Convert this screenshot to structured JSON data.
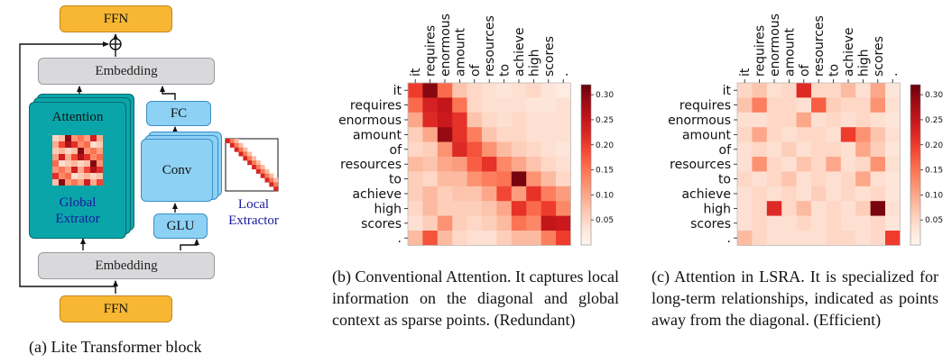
{
  "panel_a": {
    "ffn_top": "FFN",
    "ffn_bottom": "FFN",
    "embedding_top": "Embedding",
    "embedding_bottom": "Embedding",
    "attention": "Attention",
    "global_extractor_line1": "Global",
    "global_extractor_line2": "Extrator",
    "fc": "FC",
    "conv": "Conv",
    "glu": "GLU",
    "local_extractor_line1": "Local",
    "local_extractor_line2": "Extractor",
    "caption": "(a) Lite Transformer block"
  },
  "colors": {
    "ffn": "#f7b733",
    "embedding": "#d9d9dc",
    "conv_branch": "#8dd1f5",
    "attention": "#0aa5a9",
    "extractor_text": "#1a1a9c"
  },
  "panel_b": {
    "caption": "(b) Conventional Attention. It captures local information on the diagonal and global context as sparse points. (Redundant)"
  },
  "panel_c": {
    "caption": "(c) Attention in LSRA. It is specialized for long-term relationships, indicated as points away from the diagonal. (Efficient)"
  },
  "chart_data": [
    {
      "type": "heatmap",
      "tokens": [
        "it",
        "requires",
        "enormous",
        "amount",
        "of",
        "resources",
        "to",
        "achieve",
        "high",
        "scores",
        "."
      ],
      "colorbar_ticks": [
        "0.05",
        "0.10",
        "0.15",
        "0.20",
        "0.25",
        "0.30"
      ],
      "vmin": 0.0,
      "vmax": 0.32,
      "values": [
        [
          0.2,
          0.3,
          0.16,
          0.07,
          0.05,
          0.04,
          0.03,
          0.04,
          0.05,
          0.03,
          0.02
        ],
        [
          0.16,
          0.23,
          0.25,
          0.15,
          0.05,
          0.04,
          0.04,
          0.04,
          0.03,
          0.03,
          0.04
        ],
        [
          0.1,
          0.22,
          0.24,
          0.21,
          0.07,
          0.05,
          0.04,
          0.05,
          0.04,
          0.04,
          0.04
        ],
        [
          0.06,
          0.1,
          0.29,
          0.21,
          0.14,
          0.07,
          0.05,
          0.05,
          0.04,
          0.04,
          0.04
        ],
        [
          0.05,
          0.06,
          0.12,
          0.22,
          0.18,
          0.12,
          0.08,
          0.06,
          0.05,
          0.04,
          0.03
        ],
        [
          0.08,
          0.07,
          0.1,
          0.11,
          0.17,
          0.21,
          0.13,
          0.1,
          0.07,
          0.05,
          0.04
        ],
        [
          0.06,
          0.05,
          0.08,
          0.08,
          0.12,
          0.14,
          0.15,
          0.31,
          0.12,
          0.08,
          0.05
        ],
        [
          0.06,
          0.08,
          0.06,
          0.07,
          0.07,
          0.1,
          0.19,
          0.11,
          0.21,
          0.14,
          0.11
        ],
        [
          0.05,
          0.08,
          0.06,
          0.06,
          0.06,
          0.07,
          0.1,
          0.21,
          0.16,
          0.2,
          0.13
        ],
        [
          0.04,
          0.06,
          0.12,
          0.06,
          0.05,
          0.06,
          0.08,
          0.15,
          0.13,
          0.25,
          0.24
        ],
        [
          0.08,
          0.18,
          0.08,
          0.05,
          0.04,
          0.04,
          0.06,
          0.08,
          0.08,
          0.14,
          0.2
        ]
      ]
    },
    {
      "type": "heatmap",
      "tokens": [
        "it",
        "requires",
        "enormous",
        "amount",
        "of",
        "resources",
        "to",
        "achieve",
        "high",
        "scores",
        "."
      ],
      "colorbar_ticks": [
        "0.05",
        "0.10",
        "0.15",
        "0.20",
        "0.25",
        "0.30"
      ],
      "vmin": 0.0,
      "vmax": 0.32,
      "values": [
        [
          0.05,
          0.07,
          0.04,
          0.05,
          0.22,
          0.05,
          0.05,
          0.08,
          0.04,
          0.1,
          0.03
        ],
        [
          0.07,
          0.14,
          0.05,
          0.05,
          0.04,
          0.17,
          0.06,
          0.05,
          0.05,
          0.12,
          0.04
        ],
        [
          0.04,
          0.04,
          0.05,
          0.05,
          0.1,
          0.04,
          0.05,
          0.04,
          0.05,
          0.04,
          0.03
        ],
        [
          0.05,
          0.1,
          0.05,
          0.04,
          0.05,
          0.05,
          0.04,
          0.2,
          0.12,
          0.07,
          0.04
        ],
        [
          0.04,
          0.05,
          0.04,
          0.06,
          0.04,
          0.05,
          0.05,
          0.04,
          0.1,
          0.06,
          0.03
        ],
        [
          0.04,
          0.12,
          0.05,
          0.04,
          0.07,
          0.05,
          0.1,
          0.04,
          0.05,
          0.12,
          0.04
        ],
        [
          0.05,
          0.04,
          0.05,
          0.07,
          0.04,
          0.05,
          0.04,
          0.05,
          0.1,
          0.04,
          0.03
        ],
        [
          0.04,
          0.05,
          0.04,
          0.05,
          0.04,
          0.06,
          0.04,
          0.05,
          0.04,
          0.05,
          0.03
        ],
        [
          0.04,
          0.05,
          0.22,
          0.05,
          0.08,
          0.04,
          0.05,
          0.04,
          0.06,
          0.31,
          0.04
        ],
        [
          0.04,
          0.05,
          0.04,
          0.04,
          0.05,
          0.04,
          0.05,
          0.04,
          0.04,
          0.05,
          0.03
        ],
        [
          0.08,
          0.05,
          0.04,
          0.04,
          0.04,
          0.04,
          0.05,
          0.05,
          0.04,
          0.05,
          0.2
        ]
      ]
    }
  ]
}
